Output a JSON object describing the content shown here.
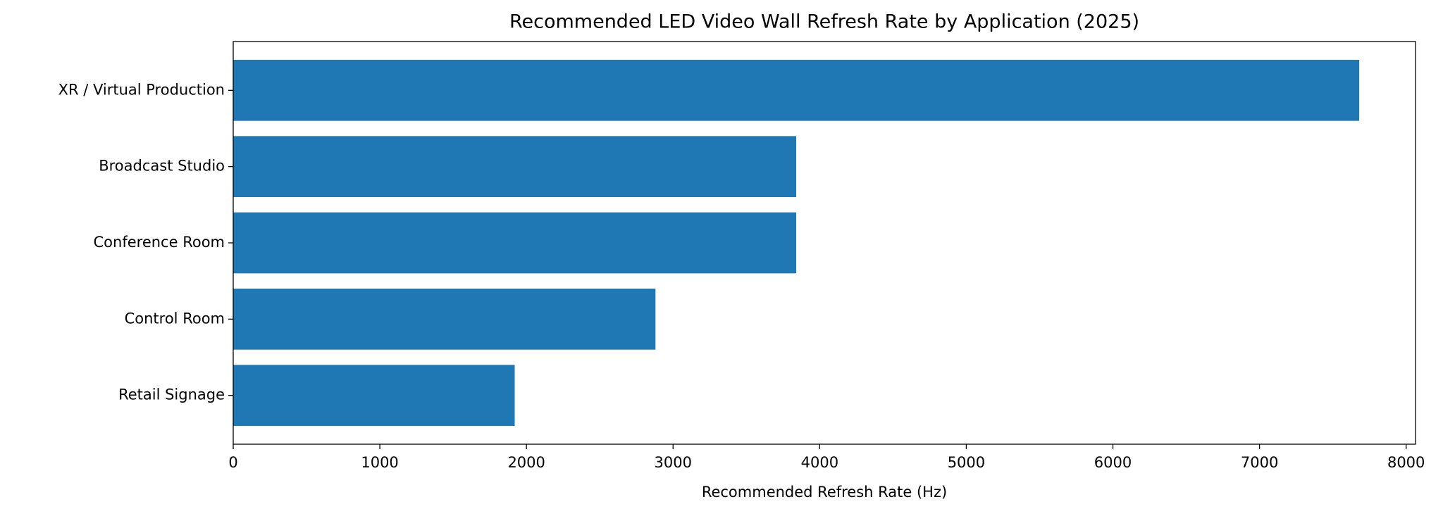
{
  "chart_data": {
    "type": "barh",
    "title": "Recommended LED Video Wall Refresh Rate by Application (2025)",
    "xlabel": "Recommended Refresh Rate (Hz)",
    "categories": [
      "XR / Virtual Production",
      "Broadcast Studio",
      "Conference Room",
      "Control Room",
      "Retail Signage"
    ],
    "values": [
      7680,
      3840,
      3840,
      2880,
      1920
    ],
    "color": "#1f77b4",
    "xlim": [
      0,
      8064
    ],
    "xticks": [
      0,
      1000,
      2000,
      3000,
      4000,
      5000,
      6000,
      7000,
      8000
    ],
    "grid": false
  }
}
